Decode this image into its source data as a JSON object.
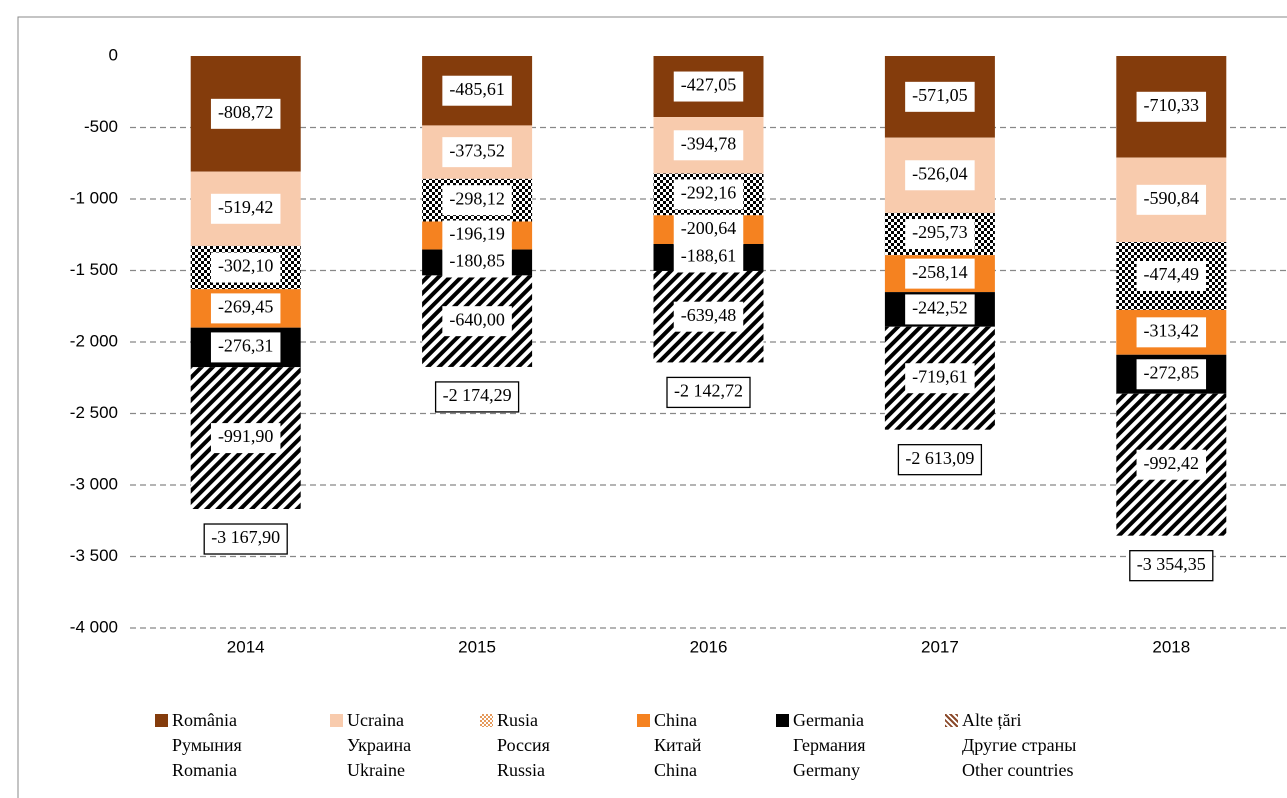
{
  "chart_data": {
    "type": "stacked_bar",
    "categories": [
      "2014",
      "2015",
      "2016",
      "2017",
      "2018"
    ],
    "series": [
      {
        "name": "România\nРумыния\nRomania",
        "color": "#843c0c",
        "pattern": "solid",
        "values": [
          -808.72,
          -485.61,
          -427.05,
          -571.05,
          -710.33
        ],
        "value_labels": [
          "-808,72",
          "-485,61",
          "-427,05",
          "-571,05",
          "-710,33"
        ]
      },
      {
        "name": "Ucraina\nУкраина\nUkraine",
        "color": "#f8cbad",
        "pattern": "solid",
        "values": [
          -519.42,
          -373.52,
          -394.78,
          -526.04,
          -590.84
        ],
        "value_labels": [
          "-519,42",
          "-373,52",
          "-394,78",
          "-526,04",
          "-590,84"
        ]
      },
      {
        "name": "Rusia\nРоссия\nRussia",
        "color": "#e59a5c",
        "pattern": "dots",
        "values": [
          -302.1,
          -298.12,
          -292.16,
          -295.73,
          -474.49
        ],
        "value_labels": [
          "-302,10",
          "-298,12",
          "-292,16",
          "-295,73",
          "-474,49"
        ]
      },
      {
        "name": "China\nКитай\nChina",
        "color": "#f58220",
        "pattern": "solid",
        "values": [
          -269.45,
          -196.19,
          -200.64,
          -258.14,
          -313.42
        ],
        "value_labels": [
          "-269,45",
          "-196,19",
          "-200,64",
          "-258,14",
          "-313,42"
        ]
      },
      {
        "name": "Germania\nГермания\nGermany",
        "color": "#000000",
        "pattern": "solid",
        "values": [
          -276.31,
          -180.85,
          -188.61,
          -242.52,
          -272.85
        ],
        "value_labels": [
          "-276,31",
          "-180,85",
          "-188,61",
          "-242,52",
          "-272,85"
        ]
      },
      {
        "name": "Alte țări\nДругие страны\nOther countries",
        "color": "#8b4a2b",
        "pattern": "hatch",
        "values": [
          -991.9,
          -640.0,
          -639.48,
          -719.61,
          -992.42
        ],
        "value_labels": [
          "-991,90",
          "-640,00",
          "-639,48",
          "-719,61",
          "-992,42"
        ]
      }
    ],
    "totals": [
      -3167.9,
      -2174.29,
      -2142.72,
      -2613.09,
      -3354.35
    ],
    "total_labels": [
      "-3 167,90",
      "-2 174,29",
      "-2 142,72",
      "-2 613,09",
      "-3 354,35"
    ],
    "ylim": [
      -4000,
      0
    ],
    "yticks": [
      0,
      -500,
      {
        "value": -1000,
        "label": "-1 000"
      },
      {
        "value": -1500,
        "label": "-1 500"
      },
      {
        "value": -2000,
        "label": "-2 000"
      },
      {
        "value": -2500,
        "label": "-2 500"
      },
      {
        "value": -3000,
        "label": "-3 000"
      },
      {
        "value": -3500,
        "label": "-3 500"
      },
      {
        "value": -4000,
        "label": "-4 000"
      }
    ],
    "grid": true
  }
}
